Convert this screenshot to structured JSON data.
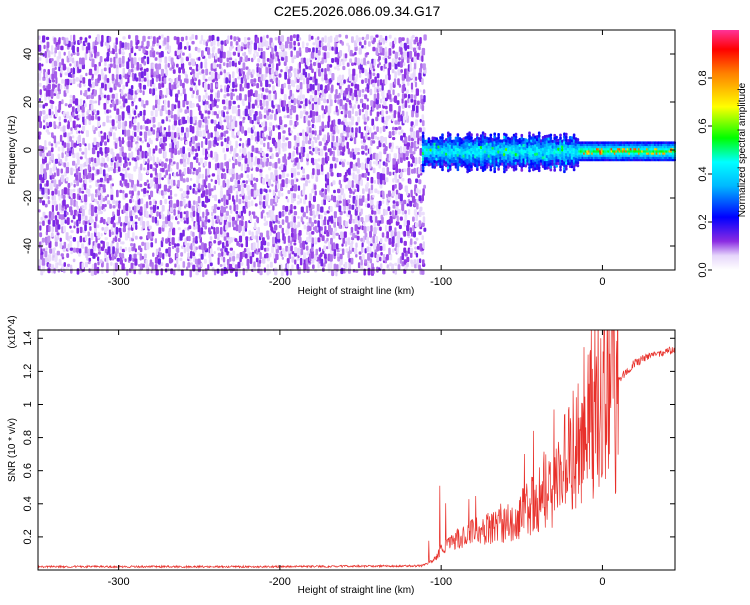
{
  "title": "C2E5.2026.086.09.34.G17",
  "colors": {
    "spectrogram_base": "#7a1ff0",
    "snr_line": "#e8302a",
    "axis": "#000000"
  },
  "chart_data": [
    {
      "type": "heatmap",
      "name": "spectrogram",
      "xlabel": "Height of straight line (km)",
      "ylabel": "Frequency (Hz)",
      "xlim": [
        -350,
        45
      ],
      "ylim": [
        -50,
        50
      ],
      "xticks": [
        -300,
        -200,
        -100,
        0
      ],
      "xtick_labels": [
        "-300",
        "-200",
        "-100",
        "0"
      ],
      "yticks": [
        40,
        20,
        0,
        -20,
        -40
      ],
      "ytick_labels": [
        "40",
        "20",
        "0",
        "-20",
        "-40"
      ],
      "colorbar": {
        "label": "Normalized spectral amplitude",
        "range": [
          0,
          1
        ],
        "ticks": [
          0.8,
          0.6,
          0.4,
          0.2,
          0.0
        ],
        "tick_labels": [
          "0.8",
          "0.6",
          "0.4",
          "0.2",
          "0.0"
        ]
      },
      "regions": [
        {
          "x_range": [
            -350,
            -112
          ],
          "freq_range": [
            -50,
            48
          ],
          "amplitude": "0.00-0.15",
          "description": "noise"
        },
        {
          "x_range": [
            -112,
            -15
          ],
          "freq_center": 0,
          "freq_halfwidth": 7,
          "amplitude": "0.15-0.45"
        },
        {
          "x_range": [
            -15,
            45
          ],
          "freq_center": 0,
          "freq_halfwidth": 2,
          "amplitude": "0.40-0.90"
        }
      ]
    },
    {
      "type": "line",
      "name": "snr",
      "xlabel": "Height of straight line (km)",
      "ylabel": "SNR (10 * v/v)",
      "multiplier_label": "(x10^4)",
      "xlim": [
        -350,
        45
      ],
      "ylim": [
        0,
        1.45
      ],
      "xticks": [
        -300,
        -200,
        -100,
        0
      ],
      "xtick_labels": [
        "-300",
        "-200",
        "-100",
        "0"
      ],
      "yticks": [
        0.2,
        0.4,
        0.6,
        0.8,
        1.0,
        1.2,
        1.4
      ],
      "ytick_labels": [
        "0.2",
        "0.4",
        "0.6",
        "0.8",
        "1",
        "1.2",
        "1.4"
      ],
      "series": [
        {
          "name": "SNR",
          "envelope": {
            "x": [
              -350,
              -300,
              -200,
              -112,
              -105,
              -100,
              -90,
              -80,
              -70,
              -60,
              -50,
              -40,
              -30,
              -20,
              -15,
              -10,
              0,
              10,
              20,
              30,
              45
            ],
            "y": [
              0.02,
              0.02,
              0.02,
              0.025,
              0.05,
              0.12,
              0.18,
              0.22,
              0.24,
              0.27,
              0.32,
              0.4,
              0.5,
              0.65,
              0.75,
              0.85,
              1.0,
              1.15,
              1.25,
              1.3,
              1.33
            ]
          }
        }
      ]
    }
  ]
}
